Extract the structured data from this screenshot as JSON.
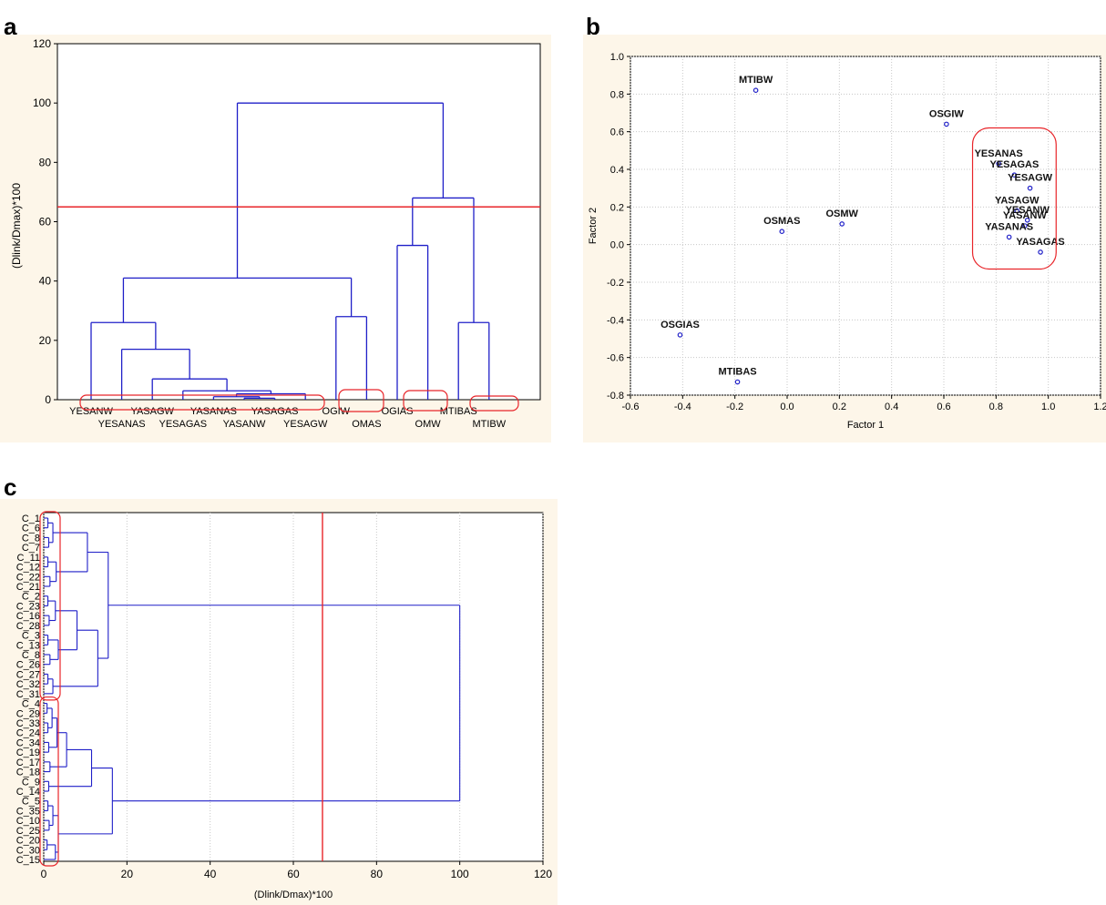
{
  "panel_labels": {
    "a": "a",
    "b": "b",
    "c": "c"
  },
  "colors": {
    "panel_bg": "#fdf6e9",
    "plot_bg": "#ffffff",
    "tree": "#1f1fc8",
    "cut": "#e8252a",
    "grid": "#c8c8c8"
  },
  "chart_data": [
    {
      "id": "a",
      "type": "dendrogram",
      "ylabel": "(Dlink/Dmax)*100",
      "xlabel": "",
      "ylim": [
        0,
        120
      ],
      "yticks": [
        0,
        20,
        40,
        60,
        80,
        100,
        120
      ],
      "grid": false,
      "cut_line": 65,
      "leaves": [
        "YESANW",
        "YESANAS",
        "YASAGW",
        "YESAGAS",
        "YASANAS",
        "YASANW",
        "YASAGAS",
        "YESAGW",
        "OGIW",
        "OMAS",
        "OGIAS",
        "OMW",
        "MTIBAS",
        "MTIBW"
      ],
      "merges": [
        {
          "a": "YASANW",
          "b": "YASAGAS",
          "h": 0.5
        },
        {
          "a": "YASANAS",
          "b": "YASANW+YASAGAS",
          "h": 1
        },
        {
          "a": "YASANAS+YASANW+YASAGAS",
          "b": "YESAGW",
          "h": 2
        },
        {
          "a": "YESAGAS",
          "b": "YASANAS+YASANW+YASAGAS+YESAGW",
          "h": 3
        },
        {
          "a": "YASAGW",
          "b": "YESAGAS+YASANAS+YASANW+YASAGAS+YESAGW",
          "h": 7
        },
        {
          "a": "YESANAS",
          "b": "YASAGW+YESAGAS+YASANAS+YASANW+YASAGAS+YESAGW",
          "h": 17
        },
        {
          "a": "YESANW",
          "b": "YESANAS+YASAGW+YESAGAS+YASANAS+YASANW+YASAGAS+YESAGW",
          "h": 26
        },
        {
          "a": "OGIW",
          "b": "OMAS",
          "h": 28
        },
        {
          "a": "YESANW-group",
          "b": "OGIW+OMAS",
          "h": 41
        },
        {
          "a": "OGIAS",
          "b": "OMW",
          "h": 52
        },
        {
          "a": "MTIBAS",
          "b": "MTIBW",
          "h": 26
        },
        {
          "a": "OGIAS+OMW",
          "b": "MTIBAS+MTIBW",
          "h": 68
        },
        {
          "a": "all-left",
          "b": "all-right",
          "h": 100
        }
      ]
    },
    {
      "id": "b",
      "type": "scatter",
      "xlabel": "Factor 1",
      "ylabel": "Factor 2",
      "xlim": [
        -0.6,
        1.2
      ],
      "ylim": [
        -0.8,
        1.0
      ],
      "xticks": [
        "-0.6",
        "-0.4",
        "-0.2",
        "0.0",
        "0.2",
        "0.4",
        "0.6",
        "0.8",
        "1.0",
        "1.2"
      ],
      "yticks": [
        "-0.8",
        "-0.6",
        "-0.4",
        "-0.2",
        "0.0",
        "0.2",
        "0.4",
        "0.6",
        "0.8",
        "1.0"
      ],
      "grid": true,
      "points": [
        {
          "label": "MTIBW",
          "x": -0.12,
          "y": 0.82
        },
        {
          "label": "OSGIW",
          "x": 0.61,
          "y": 0.64
        },
        {
          "label": "OSMAS",
          "x": -0.02,
          "y": 0.07
        },
        {
          "label": "OSMW",
          "x": 0.21,
          "y": 0.11
        },
        {
          "label": "OSGIAS",
          "x": -0.41,
          "y": -0.48
        },
        {
          "label": "MTIBAS",
          "x": -0.19,
          "y": -0.73
        },
        {
          "label": "YESANAS",
          "x": 0.81,
          "y": 0.43
        },
        {
          "label": "YESAGAS",
          "x": 0.87,
          "y": 0.37
        },
        {
          "label": "YESAGW",
          "x": 0.93,
          "y": 0.3
        },
        {
          "label": "YASAGW",
          "x": 0.88,
          "y": 0.18
        },
        {
          "label": "YESANW",
          "x": 0.92,
          "y": 0.13
        },
        {
          "label": "YASANW",
          "x": 0.91,
          "y": 0.1
        },
        {
          "label": "YASANAS",
          "x": 0.85,
          "y": 0.04
        },
        {
          "label": "YASAGAS",
          "x": 0.97,
          "y": -0.04
        }
      ]
    },
    {
      "id": "c",
      "type": "dendrogram",
      "orientation": "horizontal",
      "xlabel": "(Dlink/Dmax)*100",
      "xlim": [
        0,
        120
      ],
      "xticks": [
        0,
        20,
        40,
        60,
        80,
        100,
        120
      ],
      "grid": true,
      "cut_line": 67,
      "leaves": [
        "C_1",
        "C_6",
        "C_8",
        "C_7",
        "C_11",
        "C_12",
        "C_22",
        "C_21",
        "C_2",
        "C_23",
        "C_16",
        "C_28",
        "C_3",
        "C_13",
        "C_8",
        "C_26",
        "C_27",
        "C_32",
        "C_31",
        "C_4",
        "C_29",
        "C_33",
        "C_24",
        "C_34",
        "C_19",
        "C_17",
        "C_18",
        "C_9",
        "C_14",
        "C_5",
        "C_35",
        "C_10",
        "C_25",
        "C_20",
        "C_30",
        "C_15"
      ],
      "top_cluster_leaves": 19,
      "bottom_cluster_leaves": 17,
      "final_merge": 100
    }
  ]
}
